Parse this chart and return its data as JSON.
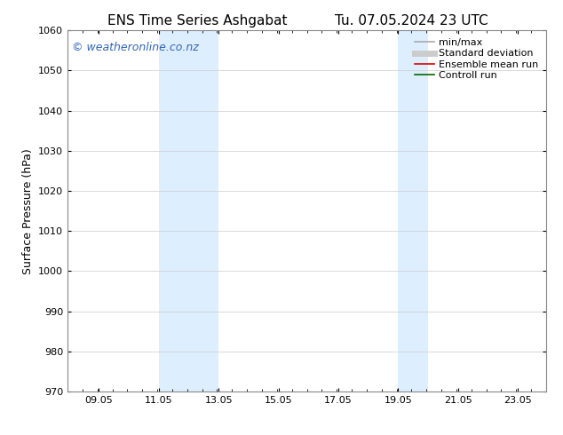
{
  "title_left": "ENS Time Series Ashgabat",
  "title_right": "Tu. 07.05.2024 23 UTC",
  "ylabel": "Surface Pressure (hPa)",
  "ylim": [
    970,
    1060
  ],
  "yticks": [
    970,
    980,
    990,
    1000,
    1010,
    1020,
    1030,
    1040,
    1050,
    1060
  ],
  "xlim": [
    8.0,
    24.0
  ],
  "xtick_positions": [
    9.05,
    11.05,
    13.05,
    15.05,
    17.05,
    19.05,
    21.05,
    23.05
  ],
  "xtick_labels": [
    "09.05",
    "11.05",
    "13.05",
    "15.05",
    "17.05",
    "19.05",
    "21.05",
    "23.05"
  ],
  "shaded_bands": [
    {
      "x_start": 11.05,
      "x_end": 13.05
    },
    {
      "x_start": 19.05,
      "x_end": 20.05
    }
  ],
  "shaded_color": "#ddeeff",
  "watermark_text": "© weatheronline.co.nz",
  "watermark_color": "#3366bb",
  "background_color": "#ffffff",
  "plot_bg_color": "#ffffff",
  "grid_color": "#cccccc",
  "legend_items": [
    {
      "label": "min/max",
      "color": "#aaaaaa",
      "lw": 1.2,
      "style": "solid"
    },
    {
      "label": "Standard deviation",
      "color": "#cccccc",
      "lw": 5,
      "style": "solid"
    },
    {
      "label": "Ensemble mean run",
      "color": "#dd0000",
      "lw": 1.2,
      "style": "solid"
    },
    {
      "label": "Controll run",
      "color": "#006600",
      "lw": 1.2,
      "style": "solid"
    }
  ],
  "title_fontsize": 11,
  "axis_label_fontsize": 9,
  "tick_fontsize": 8,
  "legend_fontsize": 8,
  "watermark_fontsize": 9
}
